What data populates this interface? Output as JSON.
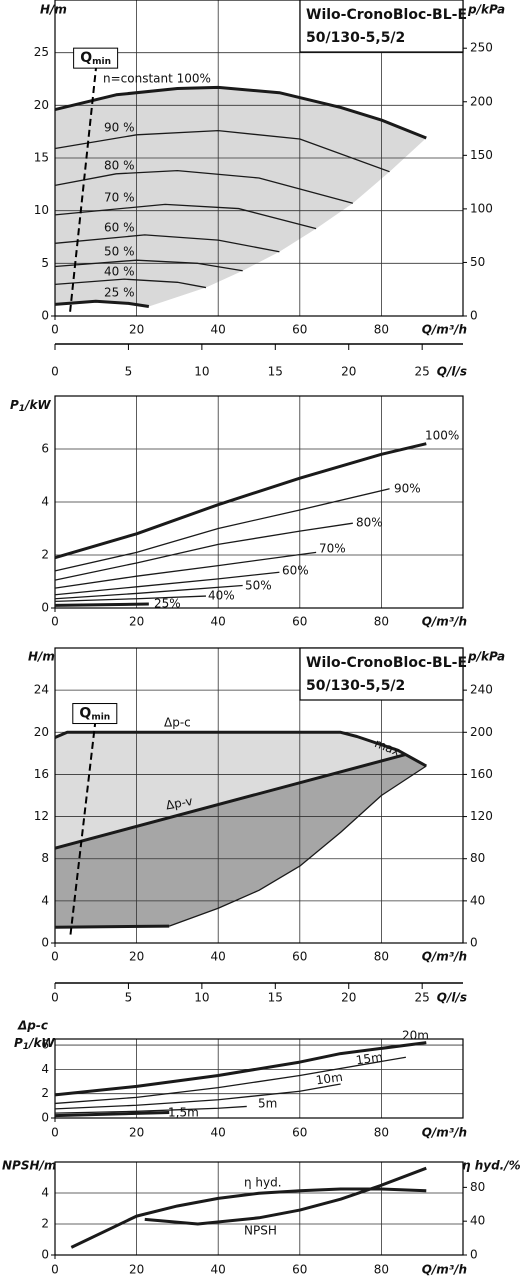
{
  "chart_data": [
    {
      "type": "line",
      "title": "Wilo-CronoBloc-BL-E",
      "subtitle": "50/130-5,5/2",
      "x_label": "Q/m³/h",
      "y_label": "H/m",
      "y2_label": "p/kPa",
      "xlim": [
        0,
        100
      ],
      "xticks": [
        0,
        20,
        40,
        60,
        80
      ],
      "ylim": [
        0,
        30
      ],
      "yticks": [
        0,
        5,
        10,
        15,
        20,
        25
      ],
      "y2lim": [
        0,
        295
      ],
      "y2ticks": [
        0,
        50,
        100,
        150,
        200,
        250
      ],
      "grid": true,
      "color": "#1a1a1a",
      "fill_color": "#d9d9d9",
      "qmin": {
        "label": {
          "text": "Q",
          "subscript": "min"
        },
        "x": [
          3.7,
          10.2
        ],
        "values": [
          0.4,
          24.1
        ]
      },
      "series": [
        {
          "name": "n=constant 100%",
          "bold": true,
          "x": [
            0,
            15,
            30,
            40,
            55,
            70,
            80,
            91
          ],
          "values": [
            19.6,
            21,
            21.6,
            21.7,
            21.2,
            19.8,
            18.6,
            16.9
          ]
        },
        {
          "name": "90 %",
          "x": [
            0,
            20,
            40,
            60,
            82
          ],
          "values": [
            15.9,
            17.2,
            17.6,
            16.8,
            13.7
          ]
        },
        {
          "name": "80 %",
          "x": [
            0,
            15,
            30,
            50,
            73
          ],
          "values": [
            12.4,
            13.5,
            13.8,
            13.1,
            10.7
          ]
        },
        {
          "name": "70 %",
          "x": [
            0,
            27,
            45,
            64
          ],
          "values": [
            9.6,
            10.6,
            10.2,
            8.3
          ]
        },
        {
          "name": "60 %",
          "x": [
            0,
            22,
            40,
            55
          ],
          "values": [
            6.9,
            7.7,
            7.2,
            6.1
          ]
        },
        {
          "name": "50 %",
          "x": [
            0,
            20,
            35,
            46
          ],
          "values": [
            4.7,
            5.3,
            5,
            4.3
          ]
        },
        {
          "name": "40 %",
          "x": [
            0,
            17,
            30,
            37
          ],
          "values": [
            3,
            3.5,
            3.2,
            2.7
          ]
        },
        {
          "name": "25 %",
          "bold": true,
          "x": [
            0,
            10,
            18,
            23
          ],
          "values": [
            1.1,
            1.4,
            1.2,
            0.9
          ]
        }
      ]
    },
    {
      "type": "axis",
      "x_label": "Q/l/s",
      "xlim": [
        0,
        27.78
      ],
      "xticks": [
        0,
        5,
        10,
        15,
        20,
        25
      ]
    },
    {
      "type": "line",
      "x_label": "Q/m³/h",
      "y_label": {
        "text": "P",
        "subscript": "1",
        "suffix": "/kW"
      },
      "xlim": [
        0,
        100
      ],
      "xticks": [
        0,
        20,
        40,
        60,
        80
      ],
      "ylim": [
        0,
        8
      ],
      "yticks": [
        0,
        2,
        4,
        6
      ],
      "grid": true,
      "color": "#1a1a1a",
      "series": [
        {
          "name": "100%",
          "bold": true,
          "x": [
            0,
            20,
            40,
            60,
            80,
            91
          ],
          "values": [
            1.9,
            2.8,
            3.9,
            4.9,
            5.8,
            6.2
          ]
        },
        {
          "name": "90%",
          "x": [
            0,
            20,
            40,
            60,
            82
          ],
          "values": [
            1.4,
            2.1,
            3,
            3.7,
            4.5
          ]
        },
        {
          "name": "80%",
          "x": [
            0,
            20,
            40,
            60,
            73
          ],
          "values": [
            1.05,
            1.7,
            2.4,
            2.9,
            3.2
          ]
        },
        {
          "name": "70%",
          "x": [
            0,
            20,
            40,
            64
          ],
          "values": [
            0.75,
            1.2,
            1.6,
            2.1
          ]
        },
        {
          "name": "60%",
          "x": [
            0,
            20,
            40,
            55
          ],
          "values": [
            0.5,
            0.8,
            1.1,
            1.35
          ]
        },
        {
          "name": "50%",
          "x": [
            0,
            20,
            46
          ],
          "values": [
            0.35,
            0.55,
            0.85
          ]
        },
        {
          "name": "40%",
          "x": [
            0,
            20,
            37
          ],
          "values": [
            0.25,
            0.35,
            0.45
          ]
        },
        {
          "name": "25%",
          "bold": true,
          "x": [
            0,
            23
          ],
          "values": [
            0.1,
            0.15
          ]
        }
      ]
    },
    {
      "type": "line",
      "title": "Wilo-CronoBloc-BL-E",
      "subtitle": "50/130-5,5/2",
      "x_label": "Q/m³/h",
      "y_label": "H/m",
      "y2_label": "p/kPa",
      "xlim": [
        0,
        100
      ],
      "xticks": [
        0,
        20,
        40,
        60,
        80
      ],
      "ylim": [
        0,
        28
      ],
      "yticks": [
        0,
        4,
        8,
        12,
        16,
        20,
        24
      ],
      "y2lim": [
        0,
        280
      ],
      "y2ticks": [
        0,
        40,
        80,
        120,
        160,
        200,
        240
      ],
      "grid": true,
      "color": "#1a1a1a",
      "fill_color": "#dcdcdc",
      "fill2_color": "#a6a6a6",
      "annotations": [
        "max."
      ],
      "qmin": {
        "label": {
          "text": "Q",
          "subscript": "min"
        },
        "x": [
          3.8,
          10
        ],
        "values": [
          0.8,
          21.4
        ]
      },
      "series": [
        {
          "name": "Δp-c",
          "bold": true,
          "x": [
            0,
            3,
            70,
            74,
            84,
            91
          ],
          "values": [
            19.5,
            20,
            20,
            19.6,
            18.3,
            16.8
          ]
        },
        {
          "name": "Δp-v",
          "bold": true,
          "x": [
            0,
            86
          ],
          "values": [
            9,
            17.9
          ]
        },
        {
          "x": [
            28,
            40,
            50,
            60,
            70,
            80,
            91
          ],
          "values": [
            1.6,
            3.3,
            5,
            7.3,
            10.5,
            14,
            16.8
          ]
        },
        {
          "bold": true,
          "x": [
            0,
            28
          ],
          "values": [
            1.5,
            1.6
          ]
        }
      ]
    },
    {
      "type": "axis",
      "x_label": "Q/l/s",
      "xlim": [
        0,
        27.78
      ],
      "xticks": [
        0,
        5,
        10,
        15,
        20,
        25
      ]
    },
    {
      "type": "line",
      "x_label": "Q/m³/h",
      "y_label_top": "Δp-c",
      "y_label": {
        "text": "P",
        "subscript": "1",
        "suffix": "/kW"
      },
      "xlim": [
        0,
        100
      ],
      "xticks": [
        0,
        20,
        40,
        60,
        80
      ],
      "ylim": [
        0,
        6.5
      ],
      "yticks": [
        0,
        2,
        4,
        6
      ],
      "grid": true,
      "color": "#1a1a1a",
      "series": [
        {
          "name": "20m",
          "bold": true,
          "x": [
            0,
            20,
            40,
            60,
            70,
            91
          ],
          "values": [
            1.9,
            2.6,
            3.5,
            4.6,
            5.3,
            6.2
          ]
        },
        {
          "name": "15m",
          "x": [
            0,
            20,
            40,
            60,
            86
          ],
          "values": [
            1.2,
            1.7,
            2.5,
            3.5,
            5
          ]
        },
        {
          "name": "10m",
          "x": [
            0,
            20,
            40,
            60,
            70
          ],
          "values": [
            0.75,
            1.05,
            1.5,
            2.2,
            2.8
          ]
        },
        {
          "name": "5m",
          "x": [
            0,
            20,
            40,
            47
          ],
          "values": [
            0.4,
            0.55,
            0.8,
            0.95
          ]
        },
        {
          "name": "1,5m",
          "bold": true,
          "x": [
            0,
            28
          ],
          "values": [
            0.2,
            0.45
          ]
        }
      ]
    },
    {
      "type": "line",
      "x_label": "Q/m³/h",
      "y_label": "NPSH/m",
      "y2_label": "η hyd./%",
      "xlim": [
        0,
        100
      ],
      "xticks": [
        0,
        20,
        40,
        60,
        80
      ],
      "ylim": [
        0,
        6
      ],
      "yticks": [
        0,
        2,
        4
      ],
      "y2lim": [
        0,
        110
      ],
      "y2ticks": [
        0,
        40,
        80
      ],
      "grid": true,
      "color": "#1a1a1a",
      "series": [
        {
          "name": "η hyd.",
          "bold": true,
          "axis": "y2",
          "x": [
            4,
            20,
            30,
            40,
            50,
            60,
            70,
            80,
            91
          ],
          "values": [
            9,
            46,
            58,
            67,
            73,
            76,
            78,
            78,
            76
          ]
        },
        {
          "name": "NPSH",
          "bold": true,
          "x": [
            22,
            35,
            50,
            60,
            70,
            80,
            91
          ],
          "values": [
            2.3,
            2,
            2.4,
            2.9,
            3.6,
            4.5,
            5.6
          ]
        }
      ]
    }
  ]
}
